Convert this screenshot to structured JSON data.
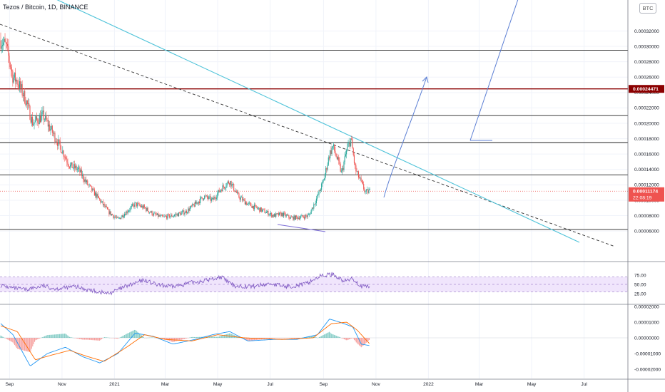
{
  "header": {
    "title": "Tezos / Bitcoin, 1D, BINANCE",
    "currency_badge": "BTC"
  },
  "price_scale": {
    "ticks": [
      "0.00032000",
      "0.00030000",
      "0.00028000",
      "0.00026000",
      "0.00024000",
      "0.00022000",
      "0.00020000",
      "0.00018000",
      "0.00016000",
      "0.00014000",
      "0.00012000",
      "0.00010000",
      "0.00008000",
      "0.00006000"
    ],
    "resistance_label": "0.00024471",
    "last_price_label": "0.00011174",
    "countdown_label": "22:08:19",
    "resistance_color": "#8b0000",
    "last_price_color": "#ef5350"
  },
  "rsi_scale": {
    "ticks": [
      "75.00",
      "50.00",
      "25.00"
    ]
  },
  "macd_scale": {
    "ticks": [
      "0.00002000",
      "0.00001000",
      "0.00000000",
      "-0.00001000",
      "-0.00002000"
    ]
  },
  "time_axis": {
    "labels": [
      "Sep",
      "Nov",
      "2021",
      "Mar",
      "May",
      "Jul",
      "Sep",
      "Nov",
      "2022",
      "Mar",
      "May",
      "Jul"
    ]
  },
  "chart_data": {
    "type": "candlestick",
    "symbol": "Tezos / Bitcoin",
    "interval": "1D",
    "exchange": "BINANCE",
    "ylim": [
      6e-05,
      0.00033
    ],
    "price_path": [
      {
        "date": "2020-08-20",
        "price": 0.00031
      },
      {
        "date": "2020-08-28",
        "price": 0.0003
      },
      {
        "date": "2020-09-05",
        "price": 0.00026
      },
      {
        "date": "2020-09-10",
        "price": 0.000255
      },
      {
        "date": "2020-09-20",
        "price": 0.00023
      },
      {
        "date": "2020-09-28",
        "price": 0.0002
      },
      {
        "date": "2020-10-10",
        "price": 0.00021
      },
      {
        "date": "2020-10-20",
        "price": 0.00019
      },
      {
        "date": "2020-11-01",
        "price": 0.000165
      },
      {
        "date": "2020-11-10",
        "price": 0.000145
      },
      {
        "date": "2020-11-20",
        "price": 0.00014
      },
      {
        "date": "2020-12-01",
        "price": 0.00012
      },
      {
        "date": "2020-12-15",
        "price": 0.0001
      },
      {
        "date": "2020-12-25",
        "price": 8.5e-05
      },
      {
        "date": "2021-01-05",
        "price": 7.5e-05
      },
      {
        "date": "2021-01-15",
        "price": 8.5e-05
      },
      {
        "date": "2021-01-25",
        "price": 9.5e-05
      },
      {
        "date": "2021-02-05",
        "price": 9e-05
      },
      {
        "date": "2021-02-15",
        "price": 8.2e-05
      },
      {
        "date": "2021-02-25",
        "price": 7.8e-05
      },
      {
        "date": "2021-03-10",
        "price": 8e-05
      },
      {
        "date": "2021-03-25",
        "price": 8.5e-05
      },
      {
        "date": "2021-04-05",
        "price": 9.5e-05
      },
      {
        "date": "2021-04-15",
        "price": 0.000105
      },
      {
        "date": "2021-04-25",
        "price": 0.0001
      },
      {
        "date": "2021-05-05",
        "price": 0.000115
      },
      {
        "date": "2021-05-15",
        "price": 0.000125
      },
      {
        "date": "2021-05-25",
        "price": 0.000105
      },
      {
        "date": "2021-06-05",
        "price": 9.5e-05
      },
      {
        "date": "2021-06-15",
        "price": 9e-05
      },
      {
        "date": "2021-06-25",
        "price": 8.5e-05
      },
      {
        "date": "2021-07-05",
        "price": 8e-05
      },
      {
        "date": "2021-07-15",
        "price": 8.2e-05
      },
      {
        "date": "2021-07-25",
        "price": 7.7e-05
      },
      {
        "date": "2021-08-05",
        "price": 7.8e-05
      },
      {
        "date": "2021-08-15",
        "price": 8e-05
      },
      {
        "date": "2021-08-25",
        "price": 0.000105
      },
      {
        "date": "2021-09-01",
        "price": 0.000125
      },
      {
        "date": "2021-09-08",
        "price": 0.00016
      },
      {
        "date": "2021-09-12",
        "price": 0.00017
      },
      {
        "date": "2021-09-18",
        "price": 0.00015
      },
      {
        "date": "2021-09-22",
        "price": 0.000135
      },
      {
        "date": "2021-09-28",
        "price": 0.000165
      },
      {
        "date": "2021-10-03",
        "price": 0.00018
      },
      {
        "date": "2021-10-08",
        "price": 0.00014
      },
      {
        "date": "2021-10-14",
        "price": 0.000125
      },
      {
        "date": "2021-10-20",
        "price": 0.00011
      },
      {
        "date": "2021-10-25",
        "price": 0.000112
      }
    ],
    "horizontal_levels": [
      0.000295,
      0.00024471,
      0.00021,
      0.000175,
      0.000133,
      6.2e-05
    ],
    "rsi": {
      "ylim": [
        0,
        100
      ],
      "band": [
        30,
        70
      ],
      "path": [
        {
          "date": "2020-08-20",
          "v": 48
        },
        {
          "date": "2020-09-05",
          "v": 40
        },
        {
          "date": "2020-09-20",
          "v": 36
        },
        {
          "date": "2020-10-10",
          "v": 46
        },
        {
          "date": "2020-10-25",
          "v": 38
        },
        {
          "date": "2020-11-15",
          "v": 44
        },
        {
          "date": "2020-12-05",
          "v": 34
        },
        {
          "date": "2020-12-25",
          "v": 25
        },
        {
          "date": "2021-01-15",
          "v": 45
        },
        {
          "date": "2021-02-05",
          "v": 62
        },
        {
          "date": "2021-02-20",
          "v": 48
        },
        {
          "date": "2021-03-10",
          "v": 44
        },
        {
          "date": "2021-04-01",
          "v": 55
        },
        {
          "date": "2021-04-20",
          "v": 62
        },
        {
          "date": "2021-05-05",
          "v": 70
        },
        {
          "date": "2021-05-20",
          "v": 46
        },
        {
          "date": "2021-06-10",
          "v": 44
        },
        {
          "date": "2021-07-01",
          "v": 52
        },
        {
          "date": "2021-07-20",
          "v": 44
        },
        {
          "date": "2021-08-10",
          "v": 50
        },
        {
          "date": "2021-08-28",
          "v": 72
        },
        {
          "date": "2021-09-12",
          "v": 78
        },
        {
          "date": "2021-09-25",
          "v": 58
        },
        {
          "date": "2021-10-05",
          "v": 66
        },
        {
          "date": "2021-10-15",
          "v": 44
        },
        {
          "date": "2021-10-25",
          "v": 44
        }
      ]
    },
    "macd": {
      "ylim": [
        -2.3e-05,
        2.3e-05
      ],
      "macd_path": [
        {
          "date": "2020-08-20",
          "v": 1e-05
        },
        {
          "date": "2020-09-05",
          "v": 2e-06
        },
        {
          "date": "2020-09-25",
          "v": -1.8e-05
        },
        {
          "date": "2020-10-15",
          "v": -1e-05
        },
        {
          "date": "2020-11-05",
          "v": -6e-06
        },
        {
          "date": "2020-11-25",
          "v": -1.2e-05
        },
        {
          "date": "2020-12-15",
          "v": -1.6e-05
        },
        {
          "date": "2021-01-05",
          "v": -1e-05
        },
        {
          "date": "2021-01-25",
          "v": 3e-06
        },
        {
          "date": "2021-02-15",
          "v": 1e-06
        },
        {
          "date": "2021-03-10",
          "v": -4e-06
        },
        {
          "date": "2021-04-05",
          "v": -1e-06
        },
        {
          "date": "2021-04-25",
          "v": 2e-06
        },
        {
          "date": "2021-05-15",
          "v": 4e-06
        },
        {
          "date": "2021-06-05",
          "v": -2e-06
        },
        {
          "date": "2021-07-05",
          "v": -1e-06
        },
        {
          "date": "2021-08-01",
          "v": -1e-06
        },
        {
          "date": "2021-08-25",
          "v": 2e-06
        },
        {
          "date": "2021-09-08",
          "v": 1.2e-05
        },
        {
          "date": "2021-09-20",
          "v": 1e-05
        },
        {
          "date": "2021-10-05",
          "v": 7e-06
        },
        {
          "date": "2021-10-15",
          "v": -4e-06
        },
        {
          "date": "2021-10-25",
          "v": -5e-06
        }
      ],
      "signal_path": [
        {
          "date": "2020-08-20",
          "v": 8e-06
        },
        {
          "date": "2020-09-10",
          "v": 4e-06
        },
        {
          "date": "2020-10-01",
          "v": -1.4e-05
        },
        {
          "date": "2020-10-20",
          "v": -1.1e-05
        },
        {
          "date": "2020-11-10",
          "v": -8e-06
        },
        {
          "date": "2020-12-01",
          "v": -1.2e-05
        },
        {
          "date": "2020-12-20",
          "v": -1.5e-05
        },
        {
          "date": "2021-01-15",
          "v": -6e-06
        },
        {
          "date": "2021-02-05",
          "v": 2e-06
        },
        {
          "date": "2021-03-01",
          "v": -1e-06
        },
        {
          "date": "2021-04-01",
          "v": -2e-06
        },
        {
          "date": "2021-05-01",
          "v": 2e-06
        },
        {
          "date": "2021-06-01",
          "v": 0.0
        },
        {
          "date": "2021-07-15",
          "v": -1e-06
        },
        {
          "date": "2021-08-20",
          "v": 0.0
        },
        {
          "date": "2021-09-10",
          "v": 9e-06
        },
        {
          "date": "2021-09-28",
          "v": 1e-05
        },
        {
          "date": "2021-10-10",
          "v": 5e-06
        },
        {
          "date": "2021-10-25",
          "v": -4e-06
        }
      ]
    }
  }
}
